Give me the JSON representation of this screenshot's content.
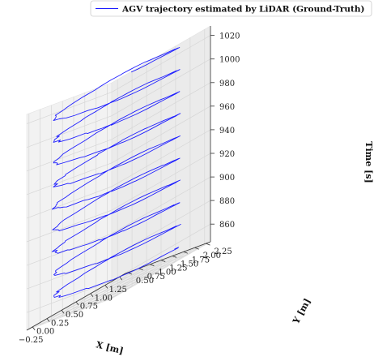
{
  "chart_data": {
    "type": "line",
    "projection": "3d",
    "legend": {
      "label": "AGV trajectory estimated by LiDAR (Ground-Truth)",
      "placement": "top-right",
      "color": "#1f1fff"
    },
    "xlabel": "X [m]",
    "ylabel": "Y [m]",
    "zlabel": "Time [s]",
    "xlim": [
      -0.35,
      1.35
    ],
    "ylim": [
      0.45,
      2.35
    ],
    "zlim": [
      845,
      1028
    ],
    "xticks": [
      "−0.25",
      "0.00",
      "0.25",
      "0.50",
      "0.75",
      "1.00",
      "1.25"
    ],
    "xtick_values": [
      -0.25,
      0.0,
      0.25,
      0.5,
      0.75,
      1.0,
      1.25
    ],
    "yticks": [
      "0.50",
      "0.75",
      "1.00",
      "1.25",
      "1.50",
      "1.75",
      "2.00",
      "2.25"
    ],
    "ytick_values": [
      0.5,
      0.75,
      1.0,
      1.25,
      1.5,
      1.75,
      2.0,
      2.25
    ],
    "zticks": [
      "860",
      "880",
      "900",
      "920",
      "940",
      "960",
      "980",
      "1000",
      "1020"
    ],
    "ztick_values": [
      860,
      880,
      900,
      920,
      940,
      960,
      980,
      1000,
      1020
    ],
    "grid": true,
    "series": [
      {
        "name": "AGV trajectory estimated by LiDAR (Ground-Truth)",
        "color": "#1f1fff",
        "trajectory": "loop",
        "center": [
          0.5,
          1.35
        ],
        "radius": [
          0.7,
          0.85
        ],
        "t_start": 852,
        "t_end": 1026,
        "loops": 9.25,
        "points": 420
      }
    ]
  }
}
